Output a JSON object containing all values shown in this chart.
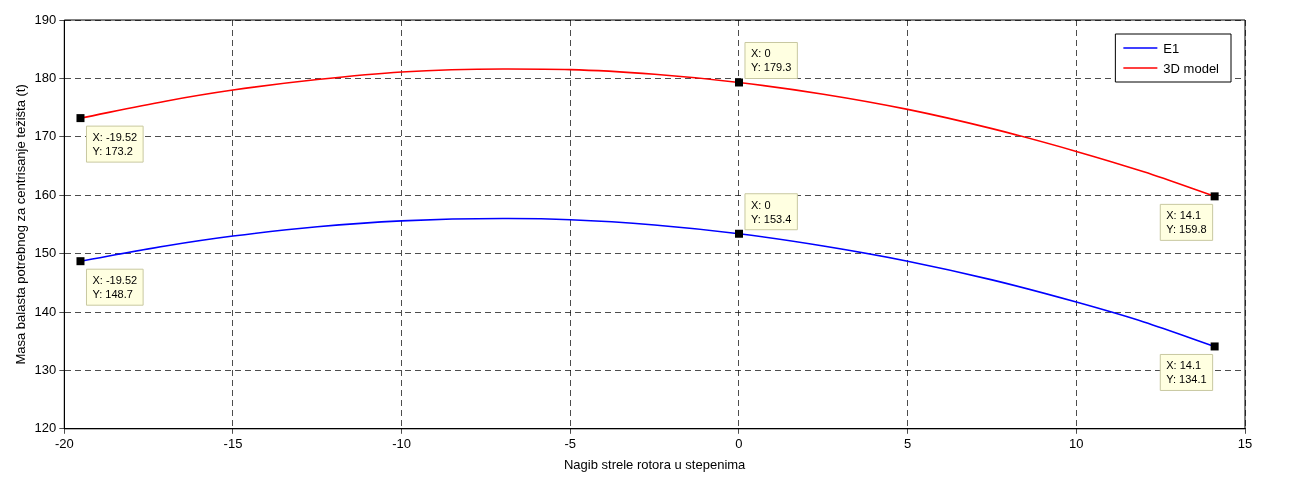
{
  "chart_data": {
    "type": "line",
    "xlabel": "Nagib strele rotora u stepenima",
    "ylabel": "Masa balasta potrebnog za centrisanje težišta (t)",
    "xlim": [
      -20,
      15
    ],
    "xticks": [
      -20,
      -15,
      -10,
      -5,
      0,
      5,
      10,
      15
    ],
    "ylim": [
      120,
      190
    ],
    "yticks": [
      120,
      130,
      140,
      150,
      160,
      170,
      180,
      190
    ],
    "grid": true,
    "legend": "top right",
    "marker": "none",
    "line_style": "solid",
    "series": [
      {
        "name": "E1",
        "color": "#0000ff",
        "x": [
          -19.52,
          -17,
          -15,
          -12.5,
          -10,
          -7,
          -5,
          -2.5,
          0,
          2.5,
          5,
          7.5,
          10,
          12,
          14.1
        ],
        "values": [
          148.7,
          151.3,
          153.0,
          154.6,
          155.6,
          156.0,
          155.8,
          154.9,
          153.4,
          151.3,
          148.7,
          145.5,
          141.7,
          138.3,
          134.1
        ]
      },
      {
        "name": "3D model",
        "color": "#ff0000",
        "x": [
          -19.52,
          -17,
          -15,
          -12.5,
          -10,
          -7,
          -5,
          -2.5,
          0,
          2.5,
          5,
          7.5,
          10,
          12,
          14.1
        ],
        "values": [
          173.2,
          176.1,
          178.0,
          179.8,
          181.1,
          181.6,
          181.5,
          180.7,
          179.3,
          177.3,
          174.7,
          171.4,
          167.5,
          164.0,
          159.8
        ]
      }
    ],
    "annotations": [
      {
        "text": "X: -19.52\nY: 173.2",
        "x": -19.52,
        "y": 173.2
      },
      {
        "text": "X: 0\nY: 179.3",
        "x": 0,
        "y": 179.3
      },
      {
        "text": "X: 14.1\nY: 159.8",
        "x": 14.1,
        "y": 159.8
      },
      {
        "text": "X: -19.52\nY: 148.7",
        "x": -19.52,
        "y": 148.7
      },
      {
        "text": "X: 0\nY: 153.4",
        "x": 0,
        "y": 153.4
      },
      {
        "text": "X: 14.1\nY: 134.1",
        "x": 14.1,
        "y": 134.1
      }
    ]
  }
}
